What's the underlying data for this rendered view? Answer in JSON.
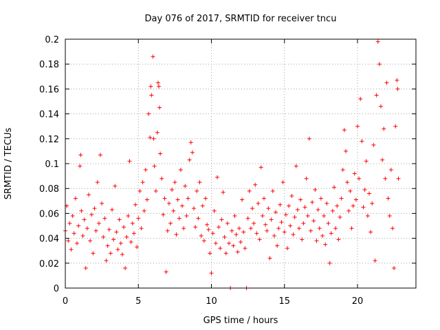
{
  "chart_data": {
    "type": "scatter",
    "title": "Day 076 of 2017, SRMTID for receiver tncu",
    "xlabel": "GPS time / hours",
    "ylabel": "SRMTID / TECUs",
    "xlim": [
      0,
      24
    ],
    "ylim": [
      0,
      0.2
    ],
    "grid": true,
    "x_ticks": [
      0,
      5,
      10,
      15,
      20
    ],
    "x_tick_labels": [
      "0",
      "5",
      "10",
      "15",
      "20"
    ],
    "y_ticks": [
      0,
      0.02,
      0.04,
      0.06,
      0.08,
      0.1,
      0.12,
      0.14,
      0.16,
      0.18,
      0.2
    ],
    "y_tick_labels": [
      "0",
      "0.02",
      "0.04",
      "0.06",
      "0.08",
      "0.1",
      "0.12",
      "0.14",
      "0.16",
      "0.18",
      "0.2"
    ],
    "marker": "plus",
    "marker_color": "#ff0000",
    "series": [
      {
        "name": "SRMTID",
        "points": [
          [
            0.0,
            0.046
          ],
          [
            0.1,
            0.066
          ],
          [
            0.2,
            0.038
          ],
          [
            0.3,
            0.052
          ],
          [
            0.4,
            0.031
          ],
          [
            0.5,
            0.058
          ],
          [
            0.6,
            0.044
          ],
          [
            0.7,
            0.072
          ],
          [
            0.8,
            0.036
          ],
          [
            0.9,
            0.05
          ],
          [
            1.0,
            0.098
          ],
          [
            1.05,
            0.107
          ],
          [
            1.1,
            0.062
          ],
          [
            1.2,
            0.042
          ],
          [
            1.3,
            0.055
          ],
          [
            1.4,
            0.016
          ],
          [
            1.5,
            0.048
          ],
          [
            1.6,
            0.075
          ],
          [
            1.7,
            0.038
          ],
          [
            1.8,
            0.059
          ],
          [
            1.9,
            0.028
          ],
          [
            2.0,
            0.064
          ],
          [
            2.1,
            0.046
          ],
          [
            2.2,
            0.085
          ],
          [
            2.3,
            0.052
          ],
          [
            2.4,
            0.107
          ],
          [
            2.5,
            0.068
          ],
          [
            2.6,
            0.041
          ],
          [
            2.7,
            0.056
          ],
          [
            2.8,
            0.022
          ],
          [
            2.9,
            0.034
          ],
          [
            3.0,
            0.047
          ],
          [
            3.1,
            0.028
          ],
          [
            3.2,
            0.063
          ],
          [
            3.3,
            0.039
          ],
          [
            3.4,
            0.082
          ],
          [
            3.5,
            0.045
          ],
          [
            3.6,
            0.031
          ],
          [
            3.7,
            0.055
          ],
          [
            3.8,
            0.036
          ],
          [
            3.9,
            0.027
          ],
          [
            4.0,
            0.049
          ],
          [
            4.1,
            0.016
          ],
          [
            4.2,
            0.041
          ],
          [
            4.3,
            0.058
          ],
          [
            4.4,
            0.102
          ],
          [
            4.5,
            0.037
          ],
          [
            4.6,
            0.052
          ],
          [
            4.7,
            0.044
          ],
          [
            4.8,
            0.067
          ],
          [
            4.9,
            0.033
          ],
          [
            5.0,
            0.056
          ],
          [
            5.1,
            0.078
          ],
          [
            5.2,
            0.048
          ],
          [
            5.3,
            0.085
          ],
          [
            5.4,
            0.062
          ],
          [
            5.5,
            0.095
          ],
          [
            5.6,
            0.071
          ],
          [
            5.7,
            0.14
          ],
          [
            5.8,
            0.121
          ],
          [
            5.85,
            0.162
          ],
          [
            5.9,
            0.155
          ],
          [
            6.0,
            0.186
          ],
          [
            6.05,
            0.12
          ],
          [
            6.1,
            0.098
          ],
          [
            6.2,
            0.078
          ],
          [
            6.3,
            0.125
          ],
          [
            6.35,
            0.165
          ],
          [
            6.4,
            0.162
          ],
          [
            6.45,
            0.145
          ],
          [
            6.5,
            0.108
          ],
          [
            6.6,
            0.088
          ],
          [
            6.7,
            0.059
          ],
          [
            6.8,
            0.072
          ],
          [
            6.9,
            0.013
          ],
          [
            7.0,
            0.046
          ],
          [
            7.1,
            0.068
          ],
          [
            7.2,
            0.052
          ],
          [
            7.3,
            0.079
          ],
          [
            7.4,
            0.062
          ],
          [
            7.5,
            0.085
          ],
          [
            7.6,
            0.043
          ],
          [
            7.7,
            0.071
          ],
          [
            7.8,
            0.056
          ],
          [
            7.9,
            0.095
          ],
          [
            8.0,
            0.066
          ],
          [
            8.1,
            0.048
          ],
          [
            8.2,
            0.082
          ],
          [
            8.3,
            0.058
          ],
          [
            8.4,
            0.072
          ],
          [
            8.5,
            0.103
          ],
          [
            8.6,
            0.117
          ],
          [
            8.7,
            0.109
          ],
          [
            8.8,
            0.064
          ],
          [
            8.9,
            0.049
          ],
          [
            9.0,
            0.078
          ],
          [
            9.1,
            0.056
          ],
          [
            9.2,
            0.085
          ],
          [
            9.3,
            0.042
          ],
          [
            9.4,
            0.066
          ],
          [
            9.5,
            0.038
          ],
          [
            9.6,
            0.072
          ],
          [
            9.7,
            0.051
          ],
          [
            9.8,
            0.047
          ],
          [
            9.9,
            0.028
          ],
          [
            10.0,
            0.012
          ],
          [
            10.1,
            0.044
          ],
          [
            10.2,
            0.062
          ],
          [
            10.3,
            0.036
          ],
          [
            10.4,
            0.089
          ],
          [
            10.5,
            0.049
          ],
          [
            10.6,
            0.032
          ],
          [
            10.7,
            0.055
          ],
          [
            10.8,
            0.077
          ],
          [
            10.9,
            0.041
          ],
          [
            11.0,
            0.028
          ],
          [
            11.1,
            0.052
          ],
          [
            11.2,
            0.036
          ],
          [
            11.3,
            0.0
          ],
          [
            11.4,
            0.046
          ],
          [
            11.5,
            0.034
          ],
          [
            11.6,
            0.058
          ],
          [
            11.7,
            0.043
          ],
          [
            11.8,
            0.029
          ],
          [
            11.9,
            0.048
          ],
          [
            12.0,
            0.037
          ],
          [
            12.1,
            0.071
          ],
          [
            12.2,
            0.045
          ],
          [
            12.3,
            0.032
          ],
          [
            12.4,
            0.0
          ],
          [
            12.5,
            0.056
          ],
          [
            12.6,
            0.078
          ],
          [
            12.7,
            0.048
          ],
          [
            12.8,
            0.064
          ],
          [
            12.9,
            0.052
          ],
          [
            13.0,
            0.083
          ],
          [
            13.1,
            0.044
          ],
          [
            13.2,
            0.068
          ],
          [
            13.3,
            0.039
          ],
          [
            13.4,
            0.097
          ],
          [
            13.5,
            0.058
          ],
          [
            13.6,
            0.072
          ],
          [
            13.7,
            0.051
          ],
          [
            13.8,
            0.046
          ],
          [
            13.9,
            0.064
          ],
          [
            14.0,
            0.024
          ],
          [
            14.1,
            0.055
          ],
          [
            14.2,
            0.078
          ],
          [
            14.3,
            0.042
          ],
          [
            14.4,
            0.061
          ],
          [
            14.5,
            0.034
          ],
          [
            14.6,
            0.048
          ],
          [
            14.7,
            0.067
          ],
          [
            14.8,
            0.053
          ],
          [
            14.9,
            0.085
          ],
          [
            15.0,
            0.045
          ],
          [
            15.1,
            0.059
          ],
          [
            15.2,
            0.032
          ],
          [
            15.3,
            0.066
          ],
          [
            15.4,
            0.05
          ],
          [
            15.5,
            0.074
          ],
          [
            15.6,
            0.043
          ],
          [
            15.7,
            0.057
          ],
          [
            15.8,
            0.098
          ],
          [
            15.9,
            0.063
          ],
          [
            16.0,
            0.048
          ],
          [
            16.1,
            0.071
          ],
          [
            16.2,
            0.039
          ],
          [
            16.3,
            0.052
          ],
          [
            16.4,
            0.065
          ],
          [
            16.5,
            0.088
          ],
          [
            16.6,
            0.058
          ],
          [
            16.7,
            0.12
          ],
          [
            16.8,
            0.046
          ],
          [
            16.9,
            0.069
          ],
          [
            17.0,
            0.054
          ],
          [
            17.1,
            0.079
          ],
          [
            17.2,
            0.038
          ],
          [
            17.3,
            0.063
          ],
          [
            17.4,
            0.048
          ],
          [
            17.5,
            0.072
          ],
          [
            17.6,
            0.042
          ],
          [
            17.7,
            0.058
          ],
          [
            17.8,
            0.035
          ],
          [
            17.9,
            0.068
          ],
          [
            18.0,
            0.052
          ],
          [
            18.1,
            0.02
          ],
          [
            18.2,
            0.044
          ],
          [
            18.3,
            0.062
          ],
          [
            18.4,
            0.081
          ],
          [
            18.5,
            0.048
          ],
          [
            18.6,
            0.066
          ],
          [
            18.7,
            0.039
          ],
          [
            18.8,
            0.057
          ],
          [
            18.9,
            0.072
          ],
          [
            19.0,
            0.095
          ],
          [
            19.1,
            0.127
          ],
          [
            19.2,
            0.11
          ],
          [
            19.3,
            0.085
          ],
          [
            19.4,
            0.062
          ],
          [
            19.5,
            0.078
          ],
          [
            19.6,
            0.048
          ],
          [
            19.7,
            0.066
          ],
          [
            19.8,
            0.092
          ],
          [
            19.9,
            0.071
          ],
          [
            20.0,
            0.13
          ],
          [
            20.1,
            0.088
          ],
          [
            20.2,
            0.152
          ],
          [
            20.3,
            0.118
          ],
          [
            20.4,
            0.065
          ],
          [
            20.5,
            0.079
          ],
          [
            20.6,
            0.102
          ],
          [
            20.7,
            0.058
          ],
          [
            20.8,
            0.076
          ],
          [
            20.9,
            0.045
          ],
          [
            21.0,
            0.068
          ],
          [
            21.1,
            0.115
          ],
          [
            21.2,
            0.022
          ],
          [
            21.3,
            0.155
          ],
          [
            21.4,
            0.198
          ],
          [
            21.5,
            0.18
          ],
          [
            21.6,
            0.146
          ],
          [
            21.7,
            0.103
          ],
          [
            21.8,
            0.128
          ],
          [
            21.9,
            0.088
          ],
          [
            22.0,
            0.165
          ],
          [
            22.1,
            0.072
          ],
          [
            22.2,
            0.058
          ],
          [
            22.3,
            0.095
          ],
          [
            22.4,
            0.048
          ],
          [
            22.5,
            0.016
          ],
          [
            22.6,
            0.13
          ],
          [
            22.7,
            0.167
          ],
          [
            22.75,
            0.16
          ],
          [
            22.8,
            0.088
          ]
        ]
      }
    ]
  }
}
